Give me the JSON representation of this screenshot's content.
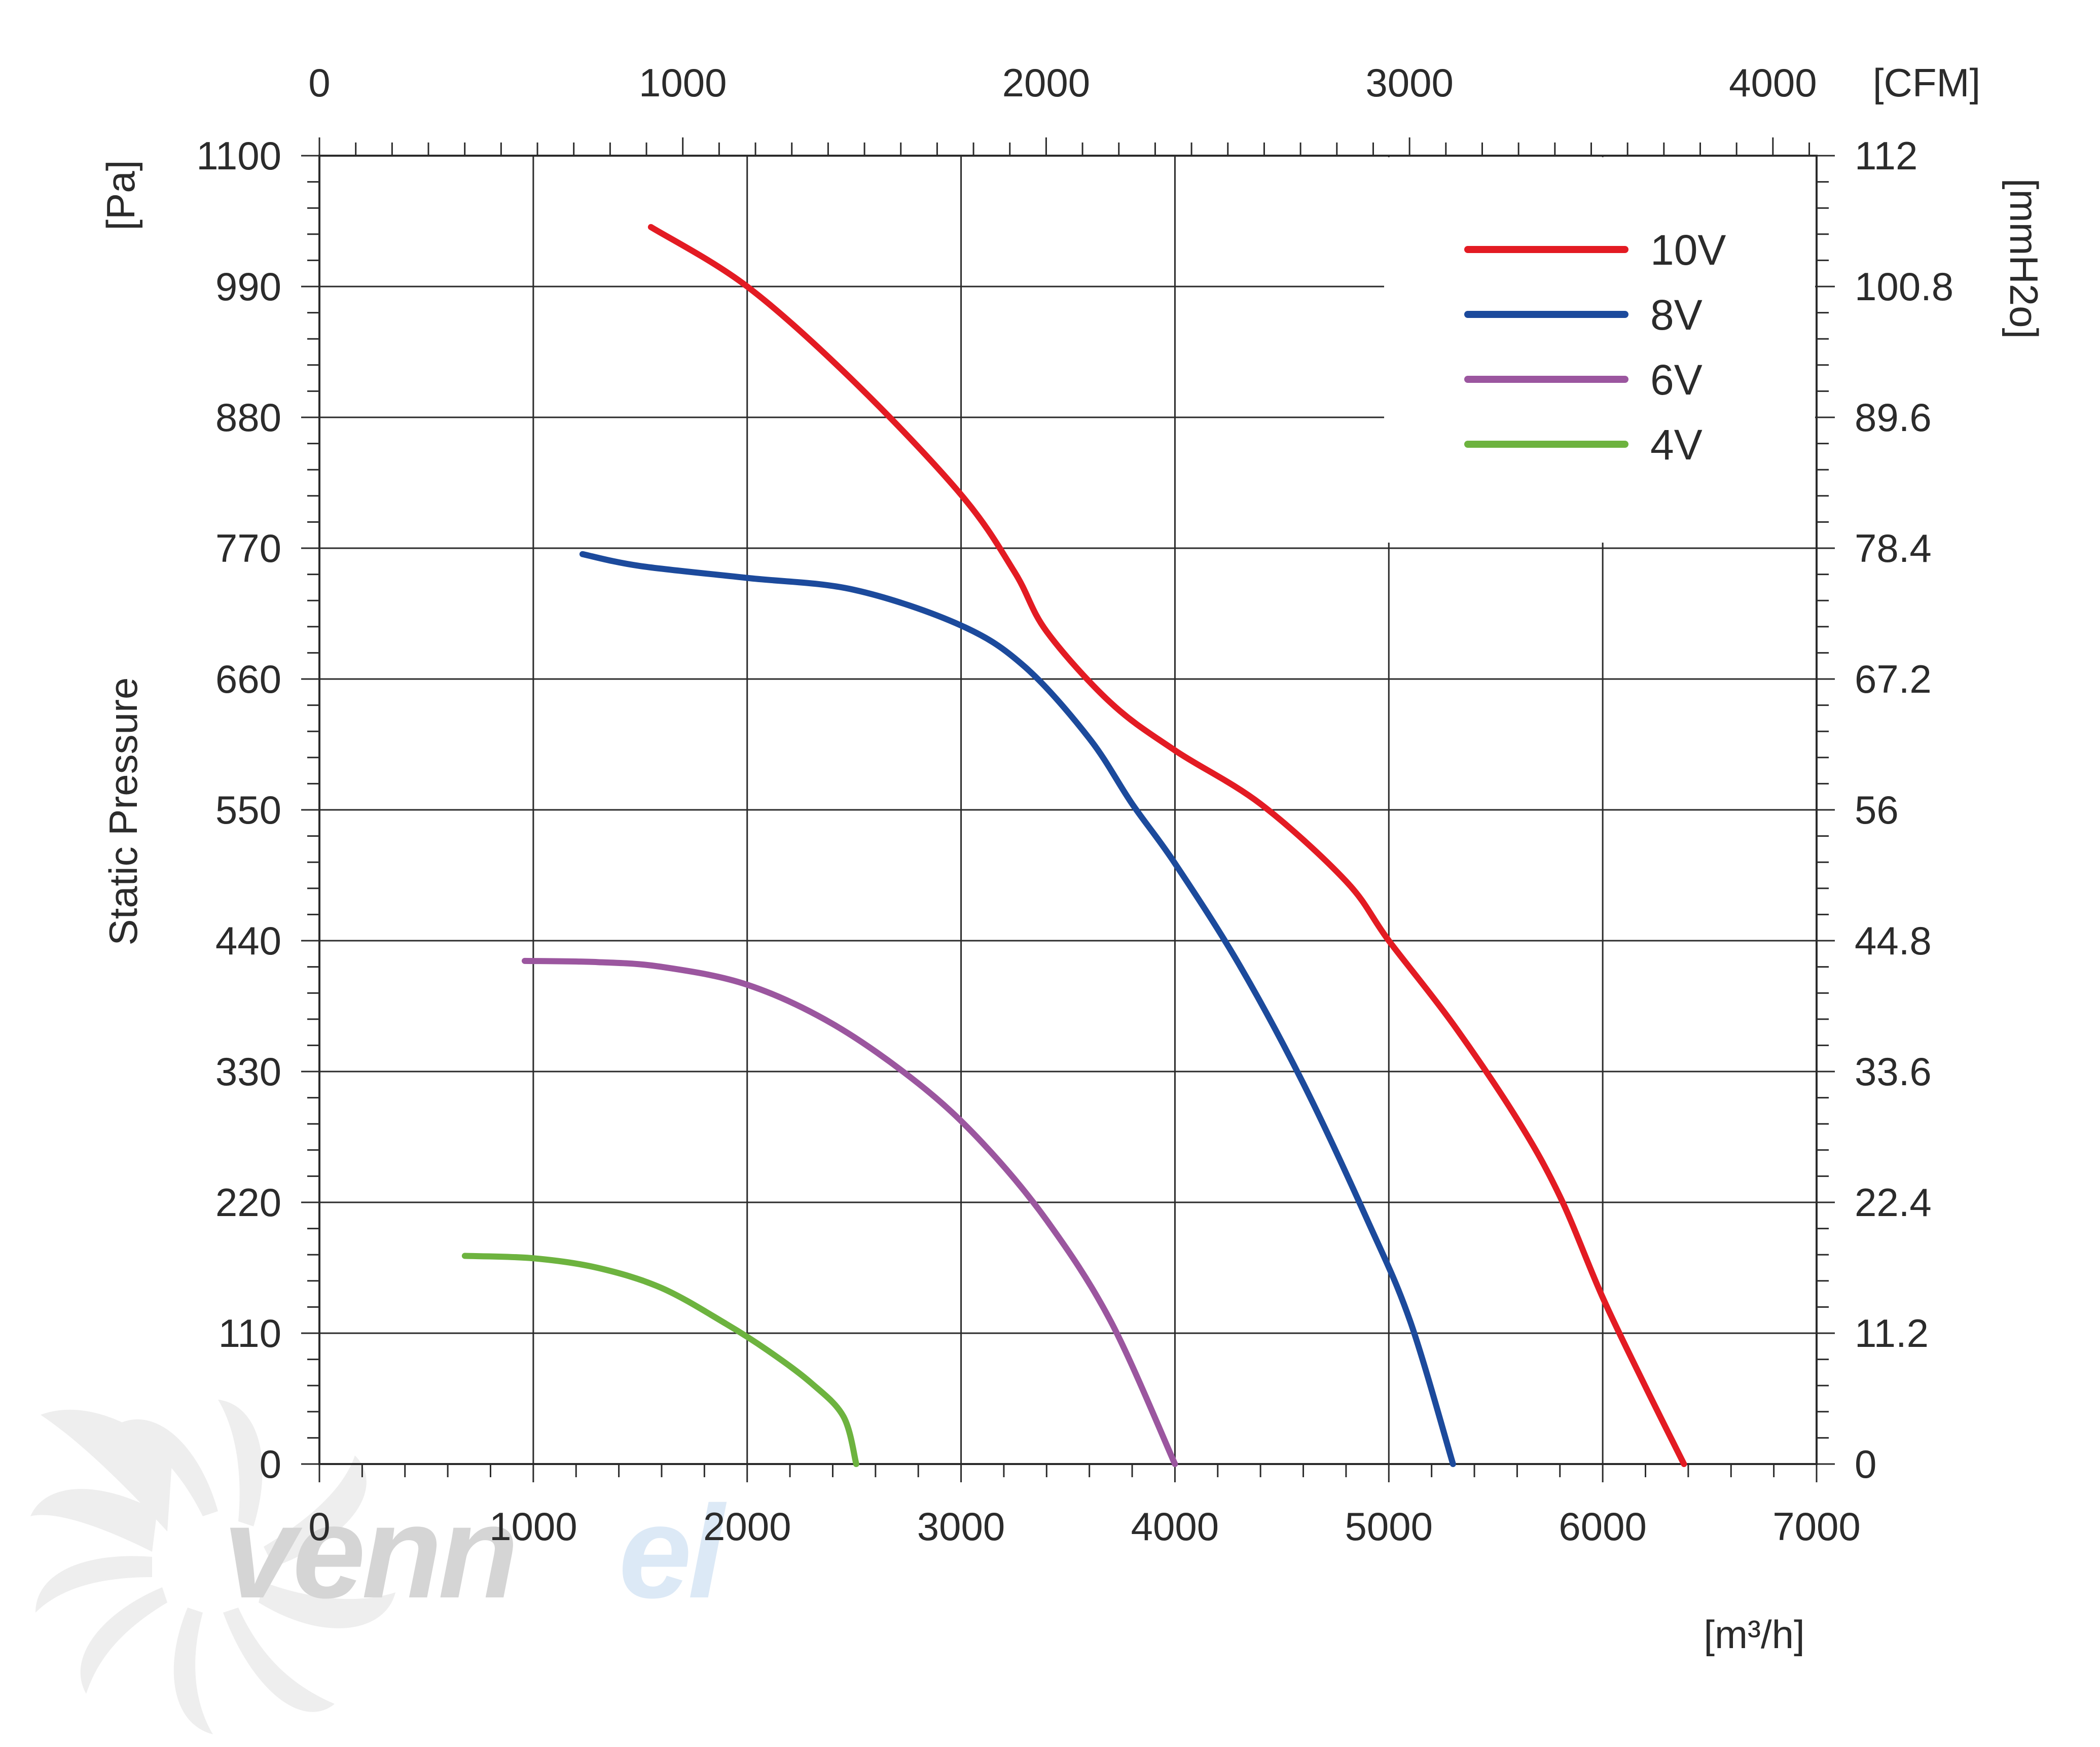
{
  "chart_data": {
    "type": "line",
    "ylabel": "Static Pressure",
    "yunit_left": "[Pa]",
    "yunit_right": "[mmH2o]",
    "xunit_bottom": "[m³/h]",
    "xunit_top": "[CFM]",
    "xlim": [
      0,
      7000
    ],
    "ylim": [
      0,
      1100
    ],
    "x_ticks": [
      "0",
      "1000",
      "2000",
      "3000",
      "4000",
      "5000",
      "6000",
      "7000"
    ],
    "x_tick_values": [
      0,
      1000,
      2000,
      3000,
      4000,
      5000,
      6000,
      7000
    ],
    "y_ticks": [
      "0",
      "110",
      "220",
      "330",
      "440",
      "550",
      "660",
      "770",
      "880",
      "990",
      "1100"
    ],
    "y_tick_values": [
      0,
      110,
      220,
      330,
      440,
      550,
      660,
      770,
      880,
      990,
      1100
    ],
    "top_ticks": [
      "0",
      "1000",
      "2000",
      "3000",
      "4000"
    ],
    "top_tick_values": [
      0,
      1000,
      2000,
      3000,
      4000
    ],
    "cfm_per_m3h": 0.5886,
    "right_ticks": [
      "0",
      "11.2",
      "22.4",
      "33.6",
      "44.8",
      "56",
      "67.2",
      "78.4",
      "89.6",
      "100.8",
      "112"
    ],
    "right_tick_values": [
      0,
      11.2,
      22.4,
      33.6,
      44.8,
      56,
      67.2,
      78.4,
      89.6,
      100.8,
      112
    ],
    "grid": true,
    "legend_position": "top-right",
    "series": [
      {
        "name": "10V",
        "color": "#e31b23",
        "x": [
          1550,
          2000,
          2500,
          3000,
          3250,
          3400,
          3700,
          4000,
          4400,
          4800,
          5000,
          5300,
          5600,
          5800,
          6000,
          6200,
          6380
        ],
        "y": [
          1040,
          990,
          910,
          815,
          750,
          700,
          640,
          600,
          555,
          490,
          440,
          370,
          290,
          225,
          140,
          65,
          0
        ]
      },
      {
        "name": "8V",
        "color": "#1c4a9c",
        "x": [
          1230,
          1500,
          2000,
          2500,
          3000,
          3300,
          3600,
          3800,
          4000,
          4300,
          4600,
          4900,
          5100,
          5300
        ],
        "y": [
          765,
          755,
          745,
          735,
          705,
          670,
          610,
          555,
          505,
          420,
          320,
          205,
          120,
          0
        ]
      },
      {
        "name": "6V",
        "color": "#9b569f",
        "x": [
          960,
          1300,
          1600,
          2000,
          2400,
          2800,
          3100,
          3400,
          3700,
          4000
        ],
        "y": [
          423,
          422,
          418,
          403,
          370,
          320,
          270,
          205,
          120,
          0
        ]
      },
      {
        "name": "4V",
        "color": "#6db33f",
        "x": [
          680,
          1000,
          1300,
          1600,
          1900,
          2100,
          2300,
          2450,
          2510
        ],
        "y": [
          175,
          173,
          165,
          148,
          118,
          95,
          68,
          40,
          0
        ]
      }
    ]
  },
  "brand": {
    "logo_text_dark": "venn",
    "logo_text_light": "el"
  }
}
